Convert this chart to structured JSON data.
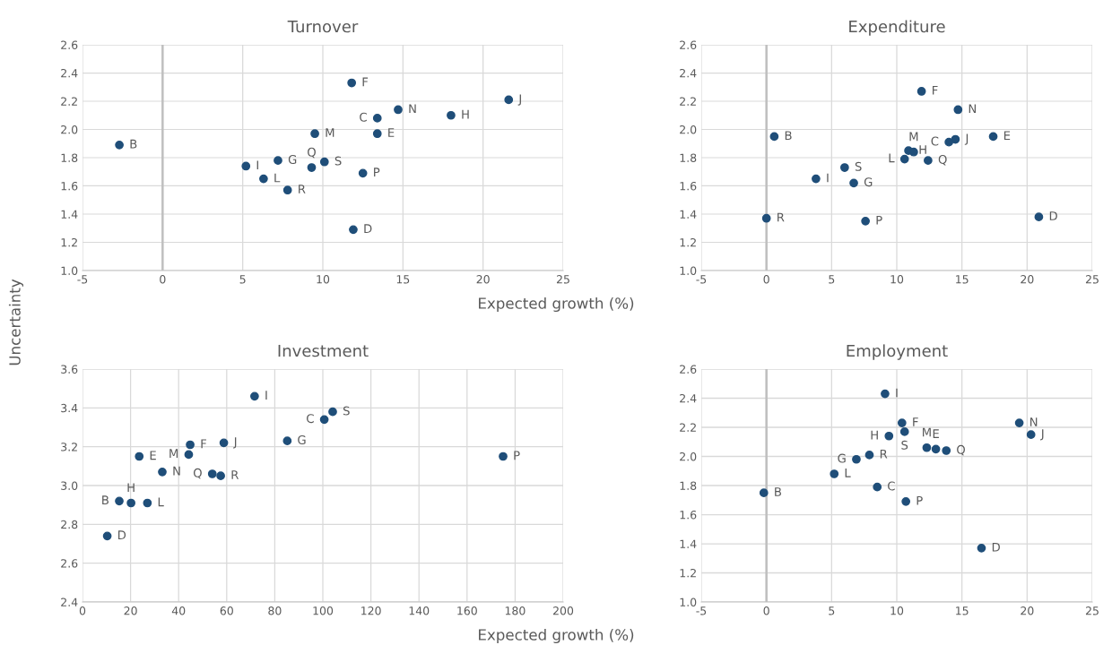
{
  "chart_data": [
    {
      "type": "scatter",
      "title": "Turnover",
      "xlabel": "Expected growth (%)",
      "ylabel": "Uncertainty",
      "xlim": [
        -5,
        25
      ],
      "xticks": [
        -5,
        0,
        5,
        10,
        15,
        20,
        25
      ],
      "ylim": [
        1.0,
        2.6
      ],
      "yticks": [
        {
          "value": 1.0,
          "label": "1.0"
        },
        1.2,
        1.4,
        1.6,
        1.8,
        {
          "value": 2.0,
          "label": "2.0"
        },
        2.2,
        2.4,
        2.6
      ],
      "grid": true,
      "marker": "circle",
      "ref_lines": [
        {
          "axis": "x",
          "value": 0,
          "color": "#bfbfbf"
        }
      ],
      "series": [
        {
          "color": "#1f4e79",
          "x": [
            -2.7,
            11.8,
            21.6,
            14.7,
            13.4,
            18.0,
            9.5,
            13.4,
            7.2,
            5.2,
            10.1,
            9.3,
            12.5,
            6.3,
            7.8,
            11.9
          ],
          "values": [
            1.89,
            2.33,
            2.21,
            2.14,
            2.08,
            2.1,
            1.97,
            1.97,
            1.78,
            1.74,
            1.77,
            1.73,
            1.69,
            1.65,
            1.57,
            1.29
          ]
        }
      ],
      "annotations": [
        {
          "text": "B",
          "x": -2.7,
          "y": 1.89
        },
        {
          "text": "F",
          "x": 11.8,
          "y": 2.33
        },
        {
          "text": "J",
          "x": 21.6,
          "y": 2.21
        },
        {
          "text": "N",
          "x": 14.7,
          "y": 2.14
        },
        {
          "text": "C",
          "x": 13.4,
          "y": 2.08
        },
        {
          "text": "H",
          "x": 18.0,
          "y": 2.1
        },
        {
          "text": "M",
          "x": 9.5,
          "y": 1.97
        },
        {
          "text": "E",
          "x": 13.4,
          "y": 1.97
        },
        {
          "text": "G",
          "x": 7.2,
          "y": 1.78
        },
        {
          "text": "I",
          "x": 5.2,
          "y": 1.74
        },
        {
          "text": "S",
          "x": 10.1,
          "y": 1.77
        },
        {
          "text": "Q",
          "x": 9.3,
          "y": 1.73
        },
        {
          "text": "P",
          "x": 12.5,
          "y": 1.69
        },
        {
          "text": "L",
          "x": 6.3,
          "y": 1.65
        },
        {
          "text": "R",
          "x": 7.8,
          "y": 1.57
        },
        {
          "text": "D",
          "x": 11.9,
          "y": 1.29
        }
      ]
    },
    {
      "type": "scatter",
      "title": "Expenditure",
      "xlim": [
        -5,
        25
      ],
      "xticks": [
        -5,
        0,
        5,
        10,
        15,
        20,
        25
      ],
      "ylim": [
        1.0,
        2.6
      ],
      "yticks": [
        {
          "value": 1.0,
          "label": "1.0"
        },
        1.2,
        1.4,
        1.6,
        1.8,
        {
          "value": 2.0,
          "label": "2.0"
        },
        2.2,
        2.4,
        2.6
      ],
      "grid": true,
      "marker": "circle",
      "ref_lines": [
        {
          "axis": "x",
          "value": 0,
          "color": "#bfbfbf"
        }
      ],
      "series": [
        {
          "color": "#1f4e79",
          "x": [
            11.9,
            14.7,
            0.6,
            17.4,
            14.5,
            14.0,
            10.9,
            11.3,
            10.6,
            12.4,
            6.0,
            3.8,
            6.7,
            0.0,
            7.6,
            20.9
          ],
          "values": [
            2.27,
            2.14,
            1.95,
            1.95,
            1.93,
            1.91,
            1.85,
            1.84,
            1.79,
            1.78,
            1.73,
            1.65,
            1.62,
            1.37,
            1.35,
            1.38
          ]
        }
      ],
      "annotations": [
        {
          "text": "F",
          "x": 11.9,
          "y": 2.27
        },
        {
          "text": "N",
          "x": 14.7,
          "y": 2.14
        },
        {
          "text": "B",
          "x": 0.6,
          "y": 1.95
        },
        {
          "text": "E",
          "x": 17.4,
          "y": 1.95
        },
        {
          "text": "J",
          "x": 14.5,
          "y": 1.93
        },
        {
          "text": "C",
          "x": 14.0,
          "y": 1.91
        },
        {
          "text": "H",
          "x": 10.9,
          "y": 1.85
        },
        {
          "text": "M",
          "x": 11.3,
          "y": 1.84
        },
        {
          "text": "L",
          "x": 10.6,
          "y": 1.79
        },
        {
          "text": "Q",
          "x": 12.4,
          "y": 1.78
        },
        {
          "text": "S",
          "x": 6.0,
          "y": 1.73
        },
        {
          "text": "I",
          "x": 3.8,
          "y": 1.65
        },
        {
          "text": "G",
          "x": 6.7,
          "y": 1.62
        },
        {
          "text": "R",
          "x": 0.0,
          "y": 1.37
        },
        {
          "text": "P",
          "x": 7.6,
          "y": 1.35
        },
        {
          "text": "D",
          "x": 20.9,
          "y": 1.38
        }
      ]
    },
    {
      "type": "scatter",
      "title": "Investment",
      "xlabel": "Expected growth (%)",
      "xlim": [
        0,
        200
      ],
      "xticks": [
        0,
        20,
        40,
        60,
        80,
        100,
        120,
        140,
        160,
        180,
        200
      ],
      "ylim": [
        2.4,
        3.6
      ],
      "yticks": [
        2.4,
        2.6,
        2.8,
        {
          "value": 3.0,
          "label": "3.0"
        },
        3.2,
        3.4,
        3.6
      ],
      "grid": true,
      "marker": "circle",
      "series": [
        {
          "color": "#1f4e79",
          "x": [
            71.6,
            104.1,
            100.6,
            85.2,
            58.8,
            44.8,
            44.2,
            23.6,
            175.0,
            33.2,
            54.0,
            57.5,
            15.3,
            20.2,
            27.0,
            10.3
          ],
          "values": [
            3.46,
            3.38,
            3.34,
            3.23,
            3.22,
            3.21,
            3.16,
            3.15,
            3.15,
            3.07,
            3.06,
            3.05,
            2.92,
            2.91,
            2.91,
            2.74
          ]
        }
      ],
      "annotations": [
        {
          "text": "I",
          "x": 71.6,
          "y": 3.46
        },
        {
          "text": "S",
          "x": 104.1,
          "y": 3.38
        },
        {
          "text": "C",
          "x": 100.6,
          "y": 3.34
        },
        {
          "text": "G",
          "x": 85.2,
          "y": 3.23
        },
        {
          "text": "J",
          "x": 58.8,
          "y": 3.22
        },
        {
          "text": "F",
          "x": 44.8,
          "y": 3.21
        },
        {
          "text": "M",
          "x": 44.2,
          "y": 3.16
        },
        {
          "text": "E",
          "x": 23.6,
          "y": 3.15
        },
        {
          "text": "P",
          "x": 175.0,
          "y": 3.15
        },
        {
          "text": "N",
          "x": 33.2,
          "y": 3.07
        },
        {
          "text": "Q",
          "x": 54.0,
          "y": 3.06
        },
        {
          "text": "R",
          "x": 57.5,
          "y": 3.05
        },
        {
          "text": "B",
          "x": 15.3,
          "y": 2.92
        },
        {
          "text": "H",
          "x": 20.2,
          "y": 2.91
        },
        {
          "text": "L",
          "x": 27.0,
          "y": 2.91
        },
        {
          "text": "D",
          "x": 10.3,
          "y": 2.74
        }
      ]
    },
    {
      "type": "scatter",
      "title": "Employment",
      "xlim": [
        -5,
        25
      ],
      "xticks": [
        -5,
        0,
        5,
        10,
        15,
        20,
        25
      ],
      "ylim": [
        1.0,
        2.6
      ],
      "yticks": [
        {
          "value": 1.0,
          "label": "1.0"
        },
        1.2,
        1.4,
        1.6,
        1.8,
        {
          "value": 2.0,
          "label": "2.0"
        },
        2.2,
        2.4,
        2.6
      ],
      "grid": true,
      "marker": "circle",
      "ref_lines": [
        {
          "axis": "x",
          "value": 0,
          "color": "#bfbfbf"
        }
      ],
      "series": [
        {
          "color": "#1f4e79",
          "x": [
            9.1,
            10.4,
            10.6,
            9.4,
            19.4,
            20.3,
            12.3,
            13.0,
            13.8,
            7.9,
            6.9,
            5.2,
            8.5,
            -0.2,
            10.7,
            16.5
          ],
          "values": [
            2.43,
            2.23,
            2.17,
            2.14,
            2.23,
            2.15,
            2.06,
            2.05,
            2.04,
            2.01,
            1.98,
            1.88,
            1.79,
            1.75,
            1.69,
            1.37
          ]
        }
      ],
      "annotations": [
        {
          "text": "I",
          "x": 9.1,
          "y": 2.43
        },
        {
          "text": "F",
          "x": 10.4,
          "y": 2.23
        },
        {
          "text": "S",
          "x": 10.6,
          "y": 2.17
        },
        {
          "text": "H",
          "x": 9.4,
          "y": 2.14
        },
        {
          "text": "N",
          "x": 19.4,
          "y": 2.23
        },
        {
          "text": "J",
          "x": 20.3,
          "y": 2.15
        },
        {
          "text": "M",
          "x": 12.3,
          "y": 2.06
        },
        {
          "text": "E",
          "x": 13.0,
          "y": 2.05
        },
        {
          "text": "Q",
          "x": 13.8,
          "y": 2.04
        },
        {
          "text": "R",
          "x": 7.9,
          "y": 2.01
        },
        {
          "text": "G",
          "x": 6.9,
          "y": 1.98
        },
        {
          "text": "L",
          "x": 5.2,
          "y": 1.88
        },
        {
          "text": "C",
          "x": 8.5,
          "y": 1.79
        },
        {
          "text": "B",
          "x": -0.2,
          "y": 1.75
        },
        {
          "text": "P",
          "x": 10.7,
          "y": 1.69
        },
        {
          "text": "D",
          "x": 16.5,
          "y": 1.37
        }
      ]
    }
  ]
}
